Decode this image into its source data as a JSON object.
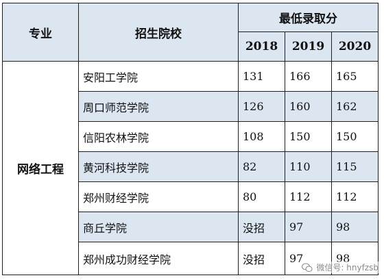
{
  "header": {
    "major_label": "专业",
    "school_label": "招生院校",
    "score_label": "最低录取分",
    "years": [
      "2018",
      "2019",
      "2020"
    ]
  },
  "major": "网络工程",
  "rows": [
    {
      "school": "安阳工学院",
      "scores": [
        "131",
        "166",
        "165"
      ]
    },
    {
      "school": "周口师范学院",
      "scores": [
        "126",
        "160",
        "162"
      ]
    },
    {
      "school": "信阳农林学院",
      "scores": [
        "108",
        "150",
        "150"
      ]
    },
    {
      "school": "黄河科技学院",
      "scores": [
        "82",
        "110",
        "115"
      ]
    },
    {
      "school": "郑州财经学院",
      "scores": [
        "80",
        "112",
        "112"
      ]
    },
    {
      "school": "商丘学院",
      "scores": [
        "没招",
        "97",
        "98"
      ]
    },
    {
      "school": "郑州成功财经学院",
      "scores": [
        "没招",
        "97",
        "98"
      ]
    }
  ],
  "watermark": "微信号: hnyfzsb",
  "colors": {
    "header_bg": "#dce6f1",
    "border": "#1e1e1e"
  }
}
